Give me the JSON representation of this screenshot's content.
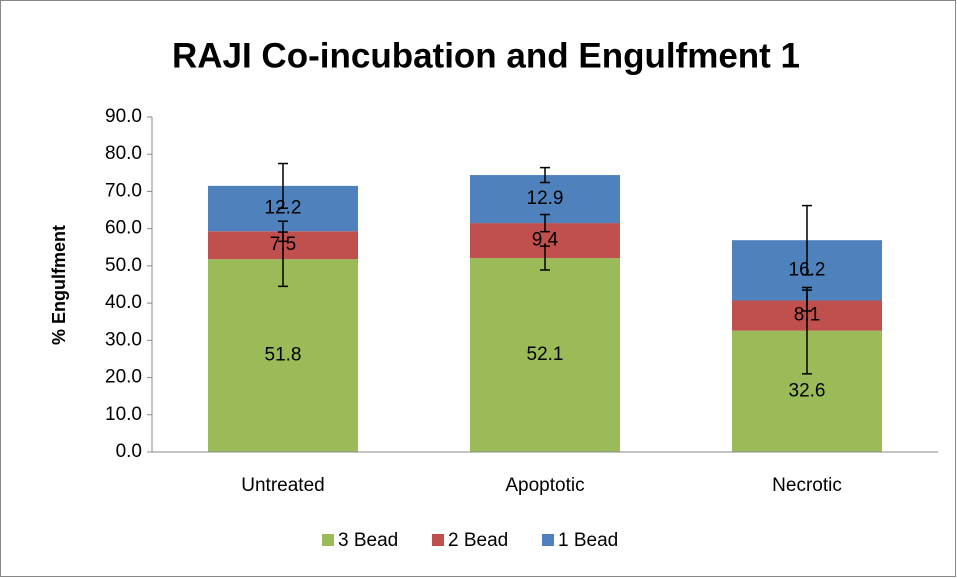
{
  "chart_data": {
    "type": "stacked_bar",
    "title": "RAJI Co-incubation and Engulfment 1",
    "y_label": "% Engulfment",
    "categories": [
      "Untreated",
      "Apoptotic",
      "Necrotic"
    ],
    "series": [
      {
        "name": "3 Bead",
        "color": "#9bbb59",
        "values": [
          51.8,
          52.1,
          32.6
        ],
        "errors": [
          7.3,
          3.2,
          11.6
        ]
      },
      {
        "name": "2 Bead",
        "color": "#c0504d",
        "values": [
          7.5,
          9.4,
          8.1
        ],
        "errors": [
          2.7,
          2.3,
          2.8
        ]
      },
      {
        "name": "1 Bead",
        "color": "#4f81bd",
        "values": [
          12.2,
          12.9,
          16.2
        ],
        "errors": [
          6.0,
          2.0,
          9.3
        ]
      }
    ],
    "ylim": [
      0,
      90
    ],
    "yticks": [
      {
        "value": 0,
        "label": "0.0"
      },
      {
        "value": 10,
        "label": "10.0"
      },
      {
        "value": 20,
        "label": "20.0"
      },
      {
        "value": 30,
        "label": "30.0"
      },
      {
        "value": 40,
        "label": "40.0"
      },
      {
        "value": 50,
        "label": "50.0"
      },
      {
        "value": 60,
        "label": "60.0"
      },
      {
        "value": 70,
        "label": "70.0"
      },
      {
        "value": 80,
        "label": "80.0"
      },
      {
        "value": 90,
        "label": "90.0"
      }
    ],
    "legend": "bottom",
    "grid": false
  }
}
